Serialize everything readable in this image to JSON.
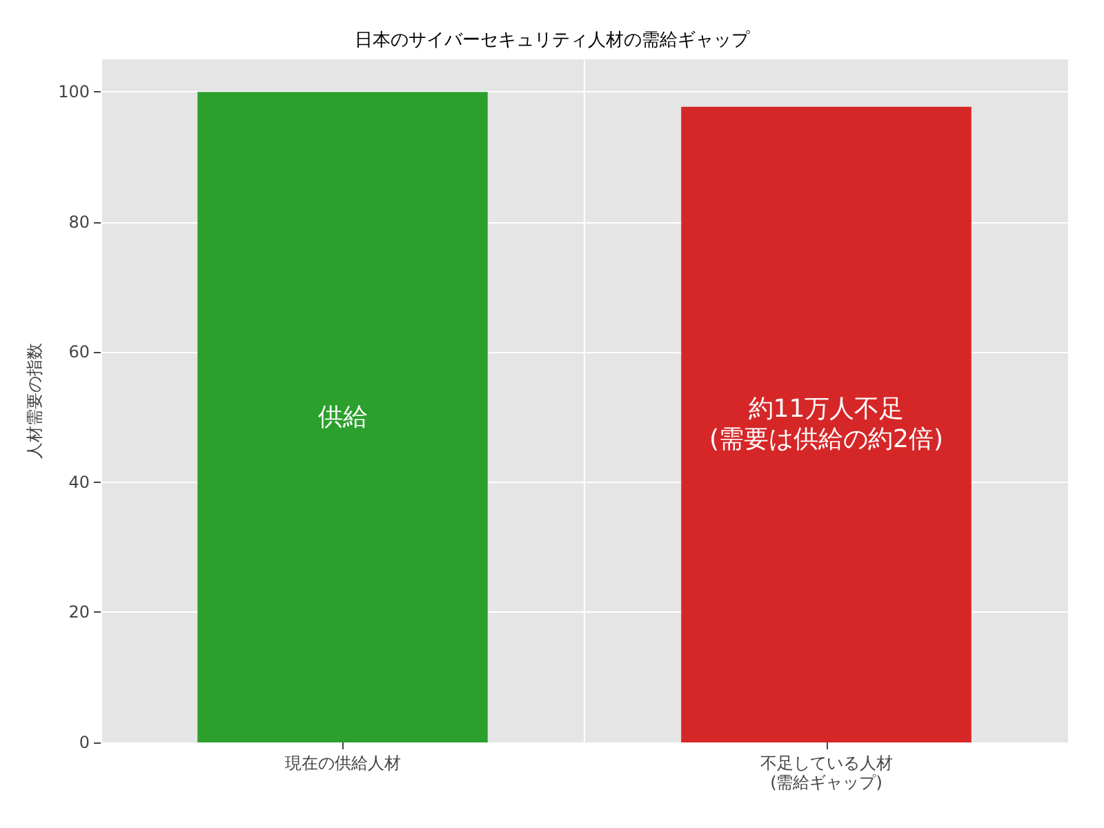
{
  "chart_data": {
    "type": "bar",
    "title": "日本のサイバーセキュリティ人材の需給ギャップ",
    "ylabel": "人材需要の指数",
    "categories": [
      "現在の供給人材",
      "不足している人材\n(需給ギャップ)"
    ],
    "values": [
      100,
      97.7
    ],
    "colors": [
      "#2ca02c",
      "#d62728"
    ],
    "ylim": [
      0,
      105
    ],
    "yticks": [
      0,
      20,
      40,
      60,
      80,
      100
    ],
    "grid": true,
    "annotations": [
      "供給",
      "約11万人不足\n(需要は供給の約2倍)"
    ]
  }
}
